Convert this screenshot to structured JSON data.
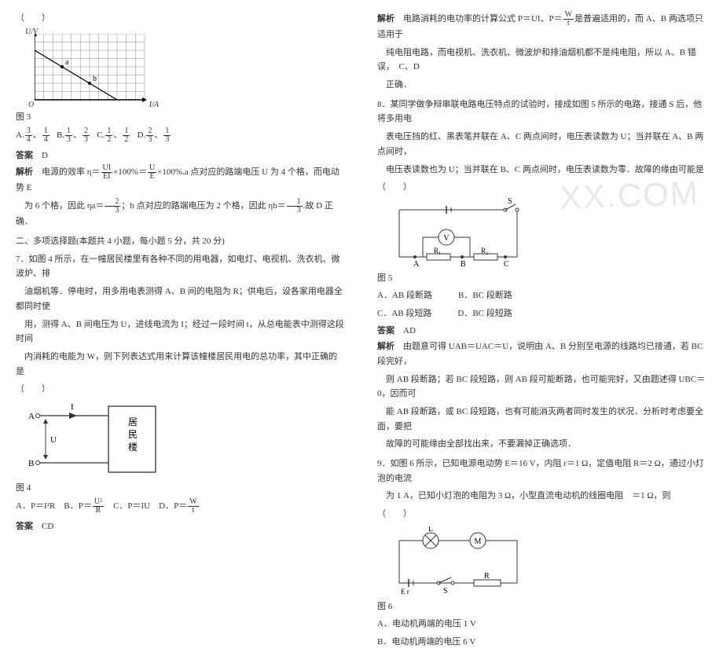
{
  "left": {
    "paren": "（　　）",
    "chart3": {
      "ylabel": "U/V",
      "xlabel": "I/A",
      "origin": "O",
      "grid_cols": 12,
      "grid_rows": 8,
      "grid_color": "#888888",
      "line_start": [
        0,
        6
      ],
      "line_end": [
        9,
        0
      ],
      "points": [
        [
          3,
          4
        ],
        [
          6,
          2
        ]
      ],
      "point_labels": [
        "a",
        "b"
      ],
      "line_width": 1.2
    },
    "fig3_label": "图 3",
    "q6_options": {
      "A": [
        "3",
        "4",
        "1",
        "4"
      ],
      "B": [
        "1",
        "3",
        "2",
        "3"
      ],
      "C": [
        "1",
        "2",
        "1",
        "2"
      ],
      "D": [
        "2",
        "3",
        "1",
        "3"
      ]
    },
    "q6_answer_label": "答案",
    "q6_answer": "D",
    "q6_expl_label": "解析",
    "q6_expl_1a": "电源的效率 η＝",
    "q6_expl_frac1": [
      "UI",
      "EI"
    ],
    "q6_expl_1b": "×100%＝",
    "q6_expl_frac2": [
      "U",
      "E"
    ],
    "q6_expl_1c": "×100%.a 点对应的路端电压 U 为 4 个格，而电动势 E",
    "q6_expl_2a": "为 6 个格，因此 ηa＝",
    "q6_expl_frac3": [
      "2",
      "3"
    ],
    "q6_expl_2b": "；b 点对应的路端电压为 2 个格，因此 ηb＝",
    "q6_expl_frac4": [
      "1",
      "3"
    ],
    "q6_expl_2c": ".故 D 正确．",
    "sec2": "二、多项选择题(本题共 4 小题，每小题 5 分，共 20 分)",
    "q7_1": "7．如图 4 所示，在一幢居民楼里有各种不同的用电器，如电灯、电视机、洗衣机、微波炉、排",
    "q7_2": "油烟机等．停电时，用多用电表测得 A、B 间的电阻为 R；供电后，设各家用电器全都同时使",
    "q7_3": "用，测得 A、B 间电压为 U，进线电流为 I；经过一段时间 t，从总电能表中测得这段时间",
    "q7_4": "内消耗的电能为 W，则下列表达式用来计算该幢楼居民用电的总功率，其中正确的是",
    "fig4": {
      "A": "A",
      "B": "B",
      "I": "I",
      "U": "U",
      "box": "居民楼",
      "arrow_color": "#333333"
    },
    "fig4_label": "图 4",
    "q7_options": {
      "A_pre": "A．P＝I²R",
      "B_pre": "B．P＝",
      "B_frac": [
        "U²",
        "R"
      ],
      "C_pre": "C．P＝IU",
      "D_pre": "D．P＝",
      "D_frac": [
        "W",
        "t"
      ]
    },
    "q7_answer_label": "答案",
    "q7_answer": "CD"
  },
  "right": {
    "q7_expl_label": "解析",
    "q7_expl_1a": "电路消耗的电功率的计算公式 P＝UI、P＝",
    "q7_expl_frac": [
      "W",
      "t"
    ],
    "q7_expl_1b": "是普遍适用的，而 A、B 两选项只适用于",
    "q7_expl_2": "纯电阻电路，而电视机、洗衣机、微波炉和排油烟机都不是纯电阻，所以 A、B 错误，　C、D",
    "q7_expl_3": "正确．",
    "q8_1": "8．某同学做争辩串联电路电压特点的试验时，接成如图 5 所示的电路，接通 S 后，他将多用电",
    "q8_2": "表电压挡的红、黑表笔并联在 A、C 两点间时，电压表读数为 U；当并联在 A、B 两点间时，",
    "q8_3": "电压表读数也为 U；当并联在 B、C 两点间时，电压表读数为零．故障的缘由可能是",
    "paren8": "（　　）",
    "fig5": {
      "S": "S",
      "V": "V",
      "A": "A",
      "B": "B",
      "C": "C",
      "R1": "R₁",
      "R2": "R₂",
      "stroke": "#333333"
    },
    "fig5_label": "图 5",
    "q8_options": {
      "A": "A．AB 段断路",
      "B": "B．BC 段断路",
      "C": "C．AB 段短路",
      "D": "D．BC 段短路"
    },
    "q8_answer_label": "答案",
    "q8_answer": "AD",
    "q8_expl_label": "解析",
    "q8_expl_1": "由题意可得 UAB＝UAC＝U，说明由 A、B 分别至电源的线路均已接通，若 BC 段完好，",
    "q8_expl_2": "则 AB 段断路；若 BC 段短路，则 AB 段可能断路，也可能完好，又由题述得 UBC＝0，因而可",
    "q8_expl_3": "能 AB 段断路，或 BC 段短路，也有可能消灭两者同时发生的状况．分析时考虑要全面，要把",
    "q8_expl_4": "故障的可能缘由全部找出来，不要漏掉正确选项．",
    "q9_1": "9．如图 6 所示，已知电源电动势 E＝16 V，内阻 r＝1 Ω，定值电阻 R＝2 Ω，通过小灯泡的电流",
    "q9_2": "为 1 A，已知小灯泡的电阻为 3 Ω，小型直流电动机的线圈电阻　＝1 Ω，则",
    "paren9": "（　　）",
    "fig6": {
      "L": "L",
      "M": "M",
      "E": "E r",
      "S": "S",
      "R": "R",
      "stroke": "#333333"
    },
    "fig6_label": "图 6",
    "q9_optA": "A．电动机两端的电压 1 V",
    "q9_optB": "B．电动机两端的电压 6 V"
  },
  "watermark": "XX.COM"
}
